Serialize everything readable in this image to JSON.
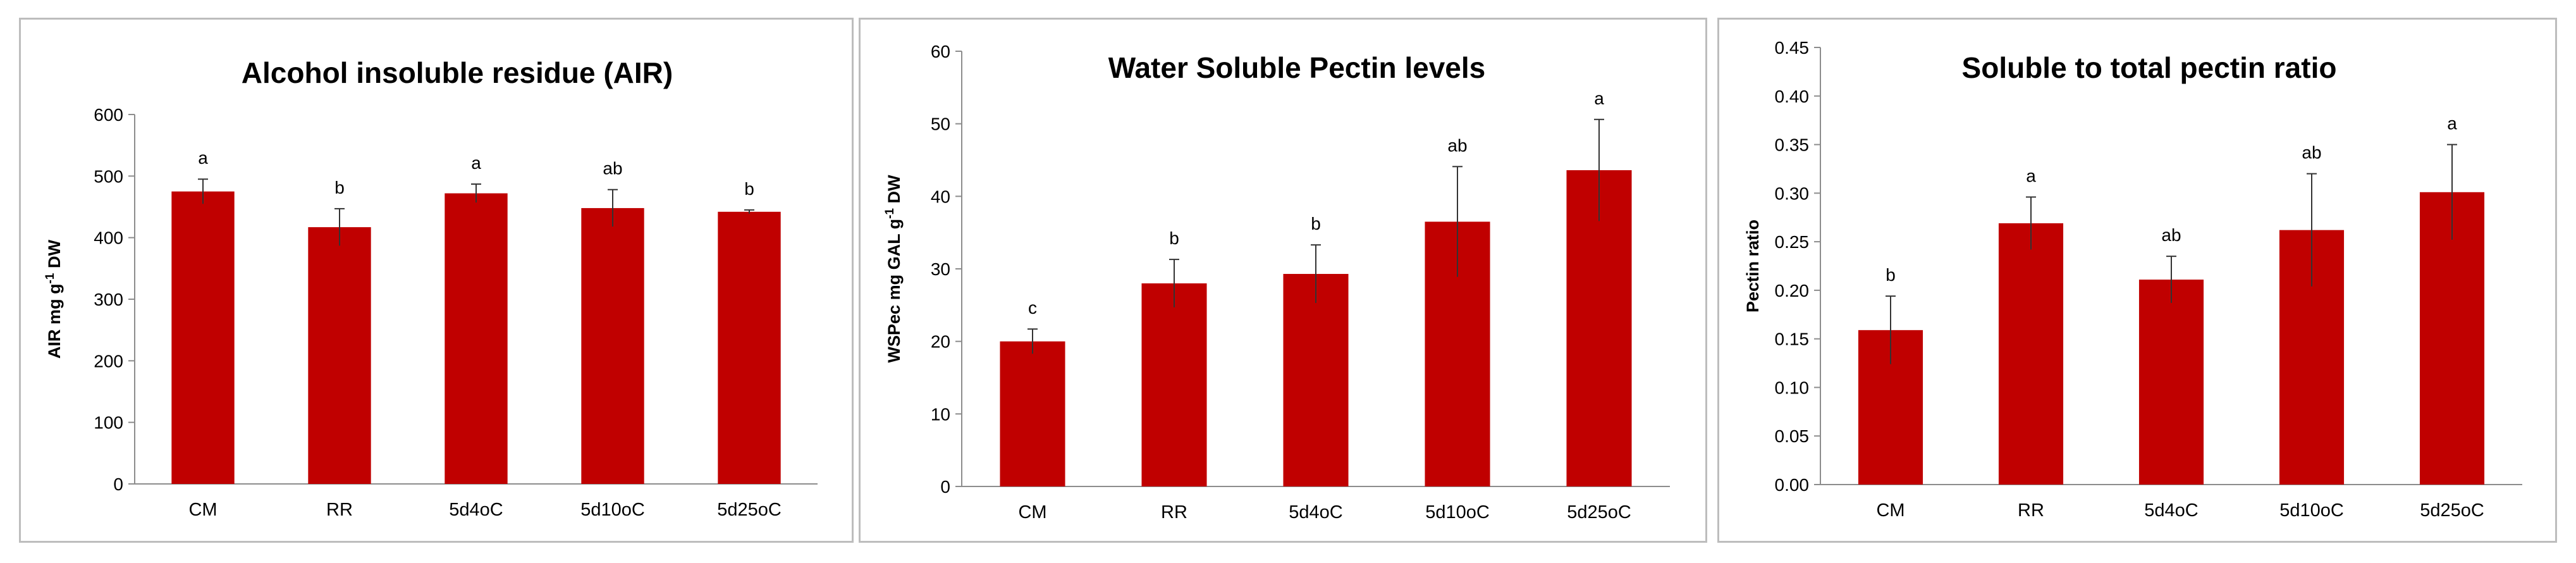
{
  "colors": {
    "bar": "#c00000",
    "error_bar": "#333333",
    "border": "#bdbdbd",
    "axis": "#8c8c8c"
  },
  "chart_data": [
    {
      "type": "bar",
      "title": "Alcohol insoluble residue (AIR)",
      "xlabel": "",
      "ylabel": "AIR mg g-1 DW",
      "ylabel_parts": [
        "AIR mg g",
        "-1",
        " DW"
      ],
      "categories": [
        "CM",
        "RR",
        "5d4oC",
        "5d10oC",
        "5d25oC"
      ],
      "values": [
        475,
        417,
        472,
        448,
        442
      ],
      "errors": [
        20,
        30,
        15,
        30,
        3
      ],
      "significance": [
        "a",
        "b",
        "a",
        "ab",
        "b"
      ],
      "ylim": [
        0,
        600
      ],
      "yticks": [
        "0",
        "100",
        "200",
        "300",
        "400",
        "500",
        "600"
      ],
      "grid": false,
      "legend": "none"
    },
    {
      "type": "bar",
      "title": "Water Soluble Pectin levels",
      "xlabel": "",
      "ylabel": "WSPec mg GAL g-1 DW",
      "ylabel_parts": [
        "WSPec  mg GAL g",
        "-1",
        " DW"
      ],
      "categories": [
        "CM",
        "RR",
        "5d4oC",
        "5d10oC",
        "5d25oC"
      ],
      "values": [
        20,
        28,
        29.3,
        36.5,
        43.6
      ],
      "errors": [
        1.7,
        3.3,
        4,
        7.6,
        7
      ],
      "significance": [
        "c",
        "b",
        "b",
        "ab",
        "a"
      ],
      "ylim": [
        0,
        60
      ],
      "yticks": [
        "0",
        "10",
        "20",
        "30",
        "40",
        "50",
        "60"
      ],
      "grid": false,
      "legend": "none"
    },
    {
      "type": "bar",
      "title": "Soluble to total pectin ratio",
      "xlabel": "",
      "ylabel": "Pectin ratio",
      "ylabel_parts": [
        "Pectin ratio",
        "",
        ""
      ],
      "categories": [
        "CM",
        "RR",
        "5d4oC",
        "5d10oC",
        "5d25oC"
      ],
      "values": [
        0.159,
        0.269,
        0.211,
        0.262,
        0.301
      ],
      "errors": [
        0.035,
        0.027,
        0.024,
        0.058,
        0.049
      ],
      "significance": [
        "b",
        "a",
        "ab",
        "ab",
        "a"
      ],
      "ylim": [
        0,
        0.45
      ],
      "yticks": [
        "0.00",
        "0.05",
        "0.10",
        "0.15",
        "0.20",
        "0.25",
        "0.30",
        "0.35",
        "0.40",
        "0.45"
      ],
      "grid": false,
      "legend": "none"
    }
  ]
}
